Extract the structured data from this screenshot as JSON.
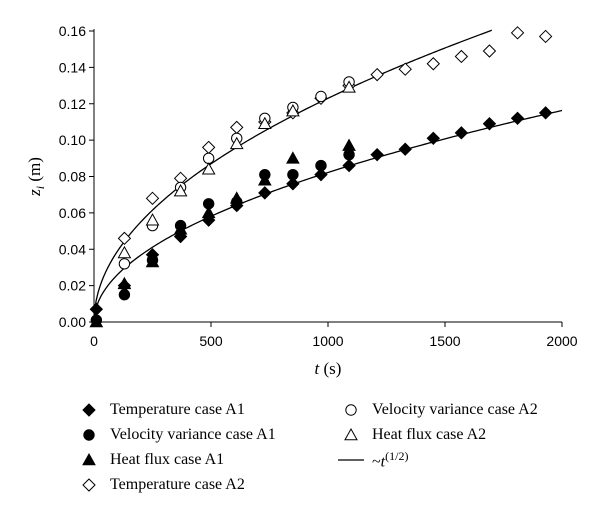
{
  "chart_data": {
    "type": "scatter",
    "xlabel": "t (s)",
    "ylabel": "z_i (m)",
    "xlim": [
      0,
      2000
    ],
    "ylim": [
      0,
      0.16
    ],
    "x_ticks": [
      "0",
      "500",
      "1000",
      "1500",
      "2000"
    ],
    "y_ticks": [
      "0.00",
      "0.02",
      "0.04",
      "0.06",
      "0.08",
      "0.10",
      "0.12",
      "0.14",
      "0.16"
    ],
    "grid": false,
    "legend_placement": "bottom",
    "series": [
      {
        "name": "Temperature case A1",
        "marker": "filled-diamond",
        "points": [
          [
            10,
            0.007
          ],
          [
            130,
            0.02
          ],
          [
            250,
            0.037
          ],
          [
            370,
            0.047
          ],
          [
            490,
            0.056
          ],
          [
            610,
            0.064
          ],
          [
            730,
            0.071
          ],
          [
            850,
            0.076
          ],
          [
            970,
            0.081
          ],
          [
            1090,
            0.086
          ],
          [
            1210,
            0.092
          ],
          [
            1330,
            0.095
          ],
          [
            1450,
            0.101
          ],
          [
            1570,
            0.104
          ],
          [
            1690,
            0.109
          ],
          [
            1810,
            0.112
          ],
          [
            1930,
            0.115
          ]
        ]
      },
      {
        "name": "Velocity variance case A1",
        "marker": "filled-circle",
        "points": [
          [
            10,
            0.001
          ],
          [
            130,
            0.015
          ],
          [
            250,
            0.034
          ],
          [
            370,
            0.053
          ],
          [
            490,
            0.065
          ],
          [
            610,
            0.066
          ],
          [
            730,
            0.081
          ],
          [
            850,
            0.081
          ],
          [
            970,
            0.086
          ],
          [
            1090,
            0.092
          ]
        ]
      },
      {
        "name": "Heat flux case A1",
        "marker": "filled-triangle",
        "points": [
          [
            10,
            0.0
          ],
          [
            130,
            0.021
          ],
          [
            250,
            0.033
          ],
          [
            370,
            0.051
          ],
          [
            490,
            0.06
          ],
          [
            610,
            0.068
          ],
          [
            730,
            0.078
          ],
          [
            850,
            0.09
          ],
          [
            1090,
            0.097
          ]
        ]
      },
      {
        "name": "Temperature case A2",
        "marker": "open-diamond",
        "points": [
          [
            130,
            0.046
          ],
          [
            250,
            0.068
          ],
          [
            370,
            0.079
          ],
          [
            490,
            0.096
          ],
          [
            610,
            0.107
          ],
          [
            730,
            0.11
          ],
          [
            850,
            0.115
          ],
          [
            970,
            0.123
          ],
          [
            1090,
            0.13
          ],
          [
            1210,
            0.136
          ],
          [
            1330,
            0.139
          ],
          [
            1450,
            0.142
          ],
          [
            1570,
            0.146
          ],
          [
            1690,
            0.149
          ],
          [
            1810,
            0.159
          ],
          [
            1930,
            0.157
          ]
        ]
      },
      {
        "name": "Velocity variance case A2",
        "marker": "open-circle",
        "points": [
          [
            130,
            0.032
          ],
          [
            250,
            0.053
          ],
          [
            370,
            0.074
          ],
          [
            490,
            0.09
          ],
          [
            610,
            0.101
          ],
          [
            730,
            0.112
          ],
          [
            850,
            0.118
          ],
          [
            970,
            0.124
          ],
          [
            1090,
            0.132
          ]
        ]
      },
      {
        "name": "Heat flux case A2",
        "marker": "open-triangle",
        "points": [
          [
            130,
            0.038
          ],
          [
            250,
            0.056
          ],
          [
            370,
            0.072
          ],
          [
            490,
            0.084
          ],
          [
            610,
            0.098
          ],
          [
            730,
            0.109
          ],
          [
            850,
            0.116
          ],
          [
            1090,
            0.129
          ]
        ]
      },
      {
        "name": "~t(1/2)",
        "marker": "line",
        "curves": [
          {
            "coefficient": 0.00389,
            "offset": 0.0,
            "x_range": [
              0,
              1700
            ]
          },
          {
            "coefficient": 0.0026,
            "offset": 0.0,
            "x_range": [
              0,
              2000
            ]
          }
        ]
      }
    ]
  }
}
